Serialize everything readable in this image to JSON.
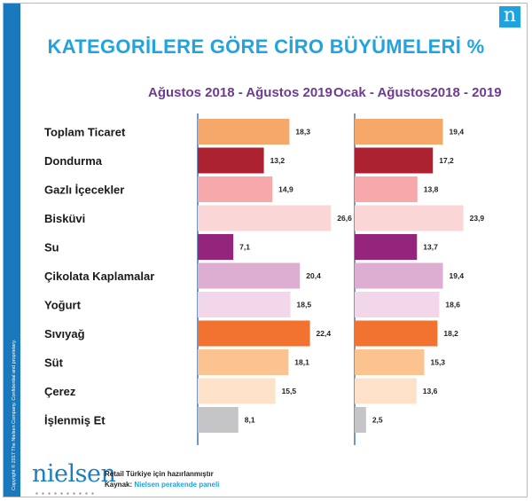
{
  "header": {
    "title": "KATEGORİLERE GÖRE CİRO BÜYÜMELERİ %",
    "logo_letter": "n"
  },
  "sidebar": {
    "copyright": "Copyright © 2017 The Nielsen Company. Confidential and proprietary."
  },
  "footer": {
    "logo_text": "nielsen",
    "note": "Retail Türkiye için hazırlanmıştır",
    "source_label": "Kaynak:",
    "source_value": "Nielsen perakende paneli"
  },
  "chart_data": {
    "type": "bar",
    "orientation": "horizontal",
    "categories": [
      "Toplam Ticaret",
      "Dondurma",
      "Gazlı İçecekler",
      "Bisküvi",
      "Su",
      "Çikolata Kaplamalar",
      "Yoğurt",
      "Sıvıyağ",
      "Süt",
      "Çerez",
      "İşlenmiş Et"
    ],
    "colors": [
      "#f6a86a",
      "#ac2230",
      "#f6a8aa",
      "#fbd6d6",
      "#94247c",
      "#deaed2",
      "#f1d7e9",
      "#f2722f",
      "#fbc390",
      "#fde1c8",
      "#c5c5c8"
    ],
    "series": [
      {
        "name": "Ağustos 2018 - Ağustos 2019",
        "values": [
          18.3,
          13.2,
          14.9,
          26.6,
          7.1,
          20.4,
          18.5,
          22.4,
          18.1,
          15.5,
          8.1
        ]
      },
      {
        "name": "Ocak - Ağustos2018 - 2019",
        "values": [
          19.4,
          17.2,
          13.8,
          23.9,
          13.7,
          19.4,
          18.6,
          18.2,
          15.3,
          13.6,
          2.5
        ]
      }
    ],
    "value_labels": [
      [
        "18,3",
        "13,2",
        "14,9",
        "26,6",
        "7,1",
        "20,4",
        "18,5",
        "22,4",
        "18,1",
        "15,5",
        "8,1"
      ],
      [
        "19,4",
        "17,2",
        "13,8",
        "23,9",
        "13,7",
        "19,4",
        "18,6",
        "18,2",
        "15,3",
        "13,6",
        "2,5"
      ]
    ],
    "xlim": [
      0,
      27
    ],
    "grid": false,
    "legend": "none"
  }
}
